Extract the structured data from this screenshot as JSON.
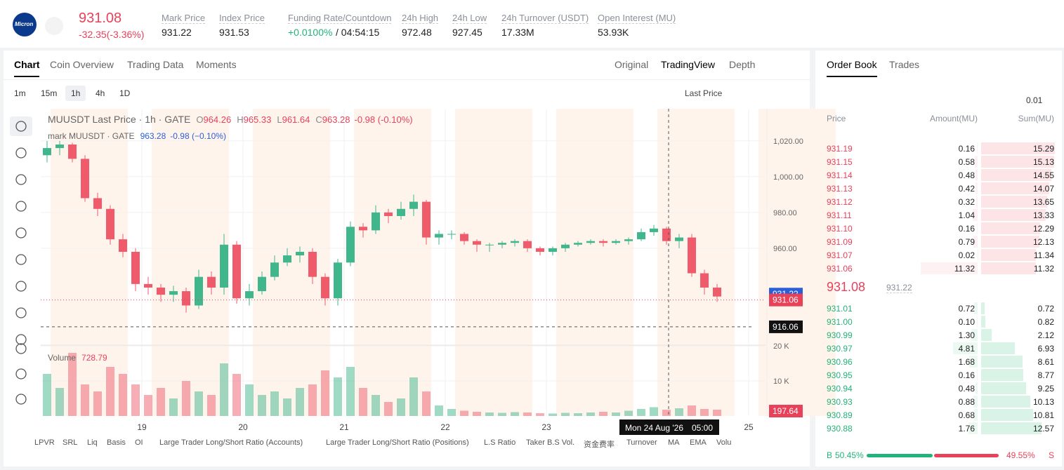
{
  "header": {
    "logo": "Micron",
    "price": "931.08",
    "change": "-32.35(-3.36%)",
    "stats": [
      {
        "label": "Mark Price",
        "value": "931.22"
      },
      {
        "label": "Index Price",
        "value": "931.53"
      },
      {
        "label": "Funding Rate/Countdown",
        "value": "+0.0100%",
        "extra": "/ 04:54:15"
      },
      {
        "label": "24h High",
        "value": "972.48"
      },
      {
        "label": "24h Low",
        "value": "927.45"
      },
      {
        "label": "24h Turnover (USDT)",
        "value": "17.33M"
      },
      {
        "label": "Open Interest (MU)",
        "value": "53.93K"
      }
    ]
  },
  "chart_tabs": [
    "Chart",
    "Coin Overview",
    "Trading Data",
    "Moments"
  ],
  "view_tabs": [
    "Original",
    "TradingView",
    "Depth"
  ],
  "intervals": [
    "1m",
    "15m",
    "1h",
    "4h",
    "1D"
  ],
  "price_type": "Last Price",
  "legend": {
    "symbol": "MUUSDT Last Price · 1h · GATE",
    "ohlc": [
      {
        "k": "O",
        "v": "964.26"
      },
      {
        "k": "H",
        "v": "965.33"
      },
      {
        "k": "L",
        "v": "961.64"
      },
      {
        "k": "C",
        "v": "963.28"
      }
    ],
    "change": "-0.98 (-0.10%)",
    "mark": "mark MUUSDT · GATE",
    "mark_value": "963.28",
    "mark_change": "-0.98 (−0.10%)",
    "volume": "Volume",
    "volume_value": "728.79"
  },
  "chart_data": {
    "type": "candlestick",
    "xlim": [
      0,
      172
    ],
    "xticks": [
      {
        "value": 24,
        "label": "19"
      },
      {
        "value": 48,
        "label": "20"
      },
      {
        "value": 72,
        "label": "21"
      },
      {
        "value": 96,
        "label": "22"
      },
      {
        "value": 120,
        "label": "23"
      },
      {
        "value": 168,
        "label": "25"
      }
    ],
    "ylim": [
      907,
      1038
    ],
    "yticks": [
      {
        "value": 1020,
        "label": "1,020.00"
      },
      {
        "value": 1000,
        "label": "1,000.00"
      },
      {
        "value": 980,
        "label": "980.00"
      },
      {
        "value": 960,
        "label": "960.00"
      }
    ],
    "volume_ylim": [
      0,
      22000
    ],
    "volume_yticks": [
      {
        "value": 10000,
        "label": "10 K"
      },
      {
        "value": 20000,
        "label": "20 K"
      }
    ],
    "x": [
      1.5,
      4.5,
      7.5,
      10.5,
      13.5,
      16.5,
      19.5,
      22.5,
      25.5,
      28.5,
      31.5,
      34.5,
      37.5,
      40.5,
      43.5,
      46.5,
      49.5,
      52.5,
      55.5,
      58.5,
      61.5,
      64.5,
      67.5,
      70.5,
      73.5,
      76.5,
      79.5,
      82.5,
      85.5,
      88.5,
      91.5,
      94.5,
      97.5,
      100.5,
      103.5,
      106.5,
      109.5,
      112.5,
      115.5,
      118.5,
      121.5,
      124.5,
      127.5,
      130.5,
      133.5,
      136.5,
      139.5,
      142.5,
      145.5,
      148.5,
      151.5,
      154.5,
      157.5,
      160.5
    ],
    "open": [
      1012,
      1016,
      1018,
      1010,
      988,
      982,
      965,
      958,
      940,
      938,
      934,
      936,
      928,
      944,
      938,
      962,
      932,
      936,
      944,
      952,
      956,
      958,
      944,
      932,
      952,
      972,
      970,
      980,
      978,
      982,
      986,
      966,
      968,
      968,
      964,
      962,
      962,
      963,
      964,
      960,
      958,
      960,
      962,
      963,
      964,
      963,
      964,
      965,
      969,
      971,
      964,
      966,
      946,
      938
    ],
    "high": [
      1020,
      1020,
      1019,
      1012,
      991,
      984,
      968,
      960,
      944,
      940,
      939,
      938,
      948,
      947,
      968,
      964,
      940,
      947,
      956,
      960,
      961,
      960,
      946,
      954,
      975,
      974,
      984,
      982,
      986,
      990,
      987,
      970,
      970,
      969,
      965,
      963,
      964,
      965,
      965,
      961,
      961,
      963,
      964,
      965,
      965,
      965,
      966,
      971,
      973,
      972,
      968,
      968,
      948,
      940
    ],
    "low": [
      1008,
      1012,
      1008,
      986,
      978,
      962,
      955,
      936,
      934,
      930,
      930,
      924,
      926,
      934,
      934,
      929,
      928,
      934,
      942,
      950,
      952,
      940,
      928,
      928,
      950,
      966,
      968,
      974,
      976,
      978,
      962,
      962,
      965,
      962,
      958,
      958,
      960,
      961,
      958,
      956,
      956,
      958,
      961,
      962,
      961,
      962,
      962,
      964,
      967,
      962,
      960,
      944,
      934,
      930
    ],
    "close": [
      1016,
      1018,
      1010,
      988,
      982,
      965,
      958,
      940,
      938,
      934,
      936,
      928,
      944,
      938,
      962,
      932,
      936,
      944,
      952,
      956,
      958,
      944,
      932,
      952,
      972,
      970,
      980,
      978,
      982,
      986,
      966,
      968,
      968,
      964,
      962,
      962,
      963,
      964,
      960,
      958,
      960,
      962,
      963,
      964,
      963,
      964,
      965,
      969,
      971,
      964,
      966,
      946,
      938,
      933
    ],
    "volume": [
      12000,
      8000,
      18000,
      9000,
      7000,
      14000,
      12000,
      9000,
      6000,
      8000,
      5000,
      10000,
      7000,
      6000,
      15000,
      12000,
      9000,
      6000,
      7000,
      5000,
      8000,
      9000,
      13000,
      11000,
      14000,
      8000,
      6000,
      4000,
      5000,
      11000,
      7000,
      3000,
      2000,
      1500,
      1200,
      1000,
      900,
      1100,
      1000,
      800,
      700,
      900,
      800,
      1000,
      1200,
      1000,
      1500,
      2000,
      2500,
      1800,
      2200,
      3000,
      2000,
      1800
    ],
    "up_color": "#3fb68b",
    "down_color": "#ef5b6b",
    "last_price": 931.06,
    "mark_price": 931.22,
    "crosshair_price": 916.06,
    "crosshair_x": 149,
    "last_volume": 197.64,
    "crosshair_date": "Mon 24 Aug '26",
    "crosshair_time": "05:00"
  },
  "indicators": [
    "LPVR",
    "SRL",
    "Liq",
    "Basis",
    "OI",
    "Large Trader Long/Short Ratio (Accounts)",
    "Large Trader Long/Short Ratio (Positions)",
    "L.S Ratio",
    "Taker B.S Vol.",
    "资金费率",
    "Turnover",
    "MA",
    "EMA",
    "Volu"
  ],
  "order_book": {
    "tabs": [
      "Order Book",
      "Trades"
    ],
    "precision": "0.01",
    "headers": [
      "Price",
      "Amount(MU)",
      "Sum(MU)"
    ],
    "asks": [
      [
        "931.19",
        "0.16",
        "15.29"
      ],
      [
        "931.15",
        "0.58",
        "15.13"
      ],
      [
        "931.14",
        "0.48",
        "14.55"
      ],
      [
        "931.13",
        "0.42",
        "14.07"
      ],
      [
        "931.12",
        "0.32",
        "13.65"
      ],
      [
        "931.11",
        "1.04",
        "13.33"
      ],
      [
        "931.10",
        "0.16",
        "12.29"
      ],
      [
        "931.09",
        "0.79",
        "12.13"
      ],
      [
        "931.07",
        "0.02",
        "11.34"
      ],
      [
        "931.06",
        "11.32",
        "11.32"
      ]
    ],
    "mid_price": "931.08",
    "mid_mark": "931.22",
    "bids": [
      [
        "931.01",
        "0.72",
        "0.72"
      ],
      [
        "931.00",
        "0.10",
        "0.82"
      ],
      [
        "930.99",
        "1.30",
        "2.12"
      ],
      [
        "930.97",
        "4.81",
        "6.93"
      ],
      [
        "930.96",
        "1.68",
        "8.61"
      ],
      [
        "930.95",
        "0.16",
        "8.77"
      ],
      [
        "930.94",
        "0.48",
        "9.25"
      ],
      [
        "930.93",
        "0.88",
        "10.13"
      ],
      [
        "930.89",
        "0.68",
        "10.81"
      ],
      [
        "930.88",
        "1.76",
        "12.57"
      ]
    ],
    "buy_label": "B",
    "buy_ratio": "50.45%",
    "sell_ratio": "49.55%",
    "sell_label": "S"
  }
}
